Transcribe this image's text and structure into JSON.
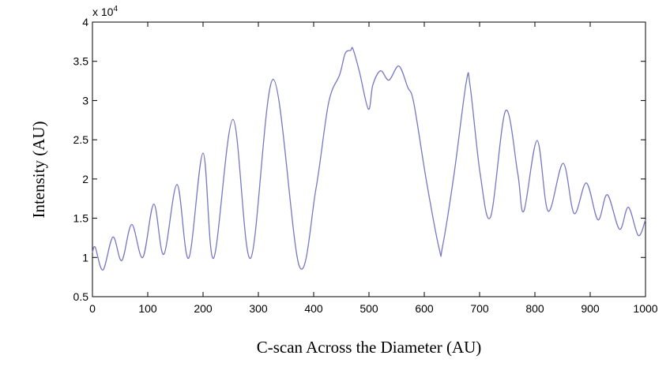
{
  "chart_data": {
    "type": "line",
    "y_label": "Intensity (AU)",
    "x_label": "C-scan Across the Diameter (AU)",
    "y_multiplier": {
      "base": "x 10",
      "exponent": "4"
    },
    "xlim": [
      0,
      1000
    ],
    "xticks": [
      0,
      100,
      200,
      300,
      400,
      500,
      600,
      700,
      800,
      900,
      1000
    ],
    "ylim": [
      0.5,
      4
    ],
    "yticks": [
      0.5,
      1,
      1.5,
      2,
      2.5,
      3,
      3.5,
      4
    ],
    "grid": false,
    "x": [
      0,
      5,
      19,
      37,
      53,
      71,
      91,
      111,
      129,
      153,
      174,
      200,
      219,
      254,
      286,
      327,
      374,
      404,
      427,
      447,
      457,
      467,
      471,
      483,
      499,
      507,
      521,
      536,
      554,
      570,
      581,
      604,
      627,
      633,
      654,
      676,
      683,
      701,
      720,
      747,
      769,
      780,
      804,
      824,
      851,
      871,
      893,
      914,
      931,
      953,
      969,
      987,
      1000
    ],
    "series": [
      {
        "color": "#7777c4",
        "values": [
          1.06,
          1.13,
          0.84,
          1.26,
          0.96,
          1.42,
          1.0,
          1.68,
          1.04,
          1.93,
          0.99,
          2.33,
          0.99,
          2.76,
          0.99,
          3.27,
          0.89,
          1.87,
          2.97,
          3.33,
          3.6,
          3.64,
          3.66,
          3.36,
          2.89,
          3.2,
          3.38,
          3.26,
          3.44,
          3.17,
          2.97,
          1.97,
          1.11,
          1.14,
          2.07,
          3.24,
          3.18,
          2.07,
          1.52,
          2.87,
          2.07,
          1.59,
          2.49,
          1.59,
          2.2,
          1.56,
          1.95,
          1.48,
          1.8,
          1.36,
          1.64,
          1.28,
          1.48
        ]
      }
    ]
  }
}
